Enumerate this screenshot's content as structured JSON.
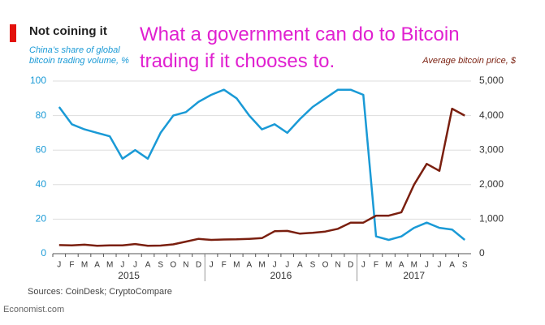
{
  "chart_data": {
    "type": "line",
    "title": "Not coining it",
    "annotation": "What a government can do to Bitcoin trading if it chooses to.",
    "source": "Sources: CoinDesk; CryptoCompare",
    "footer": "Economist.com",
    "categories": [
      "J",
      "F",
      "M",
      "A",
      "M",
      "J",
      "J",
      "A",
      "S",
      "O",
      "N",
      "D",
      "J",
      "F",
      "M",
      "A",
      "M",
      "J",
      "J",
      "A",
      "S",
      "O",
      "N",
      "D",
      "J",
      "F",
      "M",
      "A",
      "M",
      "J",
      "J",
      "A",
      "S"
    ],
    "years": [
      "2015",
      "2016",
      "2017"
    ],
    "series": [
      {
        "name": "China’s share of global bitcoin trading volume, %",
        "color": "#1a9ad6",
        "values": [
          85,
          75,
          72,
          70,
          68,
          55,
          60,
          55,
          70,
          80,
          82,
          88,
          92,
          95,
          90,
          80,
          72,
          75,
          70,
          78,
          85,
          90,
          95,
          95,
          92,
          10,
          8,
          10,
          15,
          18,
          15,
          14,
          8
        ]
      },
      {
        "name": "Average bitcoin price, $",
        "color": "#7a1f0f",
        "axis": "y2",
        "values": [
          250,
          240,
          260,
          230,
          240,
          240,
          280,
          230,
          235,
          270,
          350,
          430,
          400,
          410,
          415,
          430,
          450,
          650,
          660,
          580,
          605,
          640,
          720,
          900,
          900,
          1100,
          1100,
          1200,
          2000,
          2600,
          2400,
          4200,
          4000
        ]
      }
    ],
    "ylim": [
      0,
      100
    ],
    "yticks": [
      0,
      20,
      40,
      60,
      80,
      100
    ],
    "y2lim": [
      0,
      5000
    ],
    "y2ticks": [
      0,
      {
        "value": 1000,
        "label": "1,000"
      },
      {
        "value": 2000,
        "label": "2,000"
      },
      {
        "value": 3000,
        "label": "3,000"
      },
      {
        "value": 4000,
        "label": "4,000"
      },
      {
        "value": 5000,
        "label": "5,000"
      }
    ],
    "grid": true
  }
}
